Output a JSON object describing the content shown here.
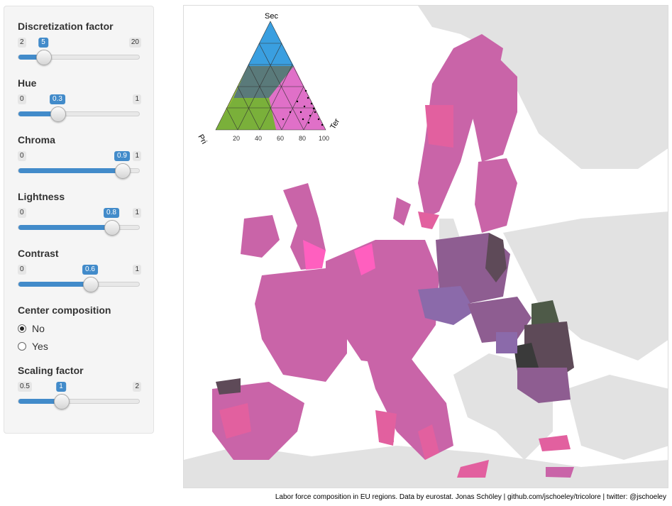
{
  "controls": {
    "discretization": {
      "label": "Discretization factor",
      "min": "2",
      "max": "20",
      "value": "5",
      "frac": 0.1667
    },
    "hue": {
      "label": "Hue",
      "min": "0",
      "max": "1",
      "value": "0.3",
      "frac": 0.3
    },
    "chroma": {
      "label": "Chroma",
      "min": "0",
      "max": "1",
      "value": "0.9",
      "frac": 0.9
    },
    "lightness": {
      "label": "Lightness",
      "min": "0",
      "max": "1",
      "value": "0.8",
      "frac": 0.8
    },
    "contrast": {
      "label": "Contrast",
      "min": "0",
      "max": "1",
      "value": "0.6",
      "frac": 0.6
    },
    "center": {
      "label": "Center composition",
      "options": [
        "No",
        "Yes"
      ],
      "selected": "No"
    },
    "scaling": {
      "label": "Scaling factor",
      "min": "0.5",
      "max": "2",
      "value": "1",
      "frac": 0.3333
    }
  },
  "legend": {
    "top_label": "Sec",
    "left_label": "Pri",
    "right_label": "Ter",
    "ticks": [
      "20",
      "40",
      "60",
      "80",
      "100"
    ]
  },
  "caption": "Labor force composition in EU regions. Data by eurostat. Jonas Schöley | github.com/jschoeley/tricolore | twitter: @jschoeley",
  "colors": {
    "accent": "#428bca",
    "region_default": "#c964a8",
    "region_light": "#e2609f",
    "region_hot": "#ff5fbf",
    "region_purple": "#8e5d91",
    "region_violet": "#8b6aaa",
    "region_dark": "#5e4a58",
    "region_green": "#4e5a48",
    "non_eu": "#e2e2e2"
  }
}
